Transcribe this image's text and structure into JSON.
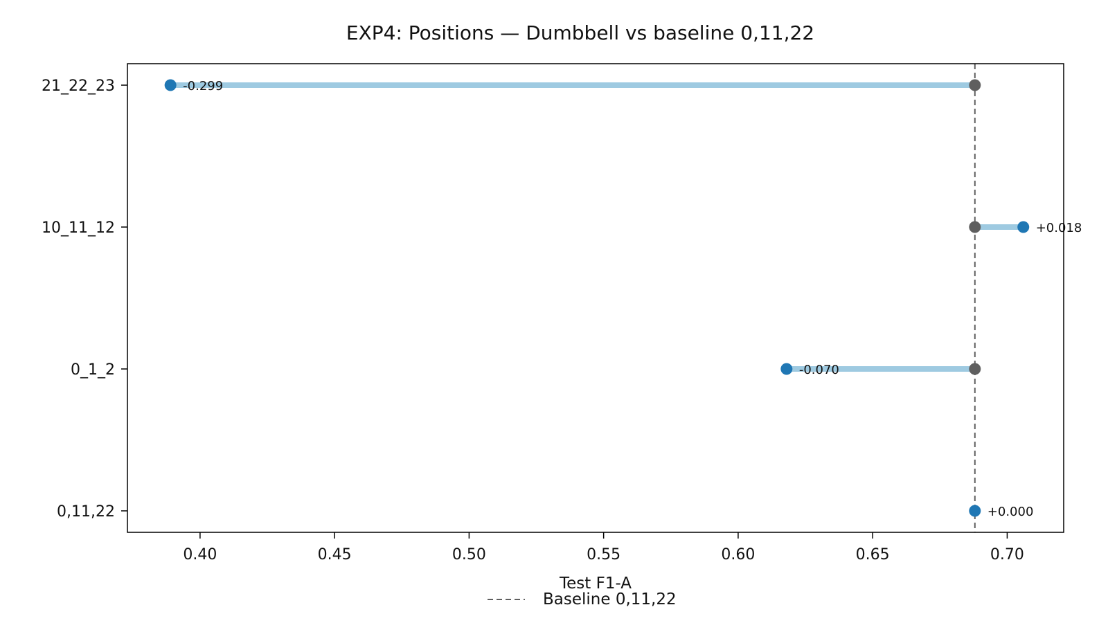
{
  "chart_data": {
    "type": "dumbbell",
    "title": "EXP4: Positions — Dumbbell vs baseline 0,11,22",
    "xlabel": "Test F1-A",
    "ylabel": "",
    "xlim": [
      0.373,
      0.721
    ],
    "xticks": [
      0.4,
      0.45,
      0.5,
      0.55,
      0.6,
      0.65,
      0.7
    ],
    "xtick_labels": [
      "0.40",
      "0.45",
      "0.50",
      "0.55",
      "0.60",
      "0.65",
      "0.70"
    ],
    "grid": false,
    "baseline": {
      "name": "Baseline 0,11,22",
      "value": 0.688
    },
    "categories": [
      "0,11,22",
      "0_1_2",
      "10_11_12",
      "21_22_23"
    ],
    "values": [
      0.688,
      0.618,
      0.706,
      0.389
    ],
    "deltas": [
      "+0.000",
      "-0.070",
      "+0.018",
      "-0.299"
    ],
    "legend": {
      "position": "bottom-center",
      "entries": [
        "Baseline 0,11,22"
      ]
    },
    "colors": {
      "point": "#1f77b4",
      "baseline_point": "#5f5f5f",
      "connector": "#9ecae1",
      "baseline_line": "#5f5f5f",
      "axis": "#000000"
    }
  }
}
